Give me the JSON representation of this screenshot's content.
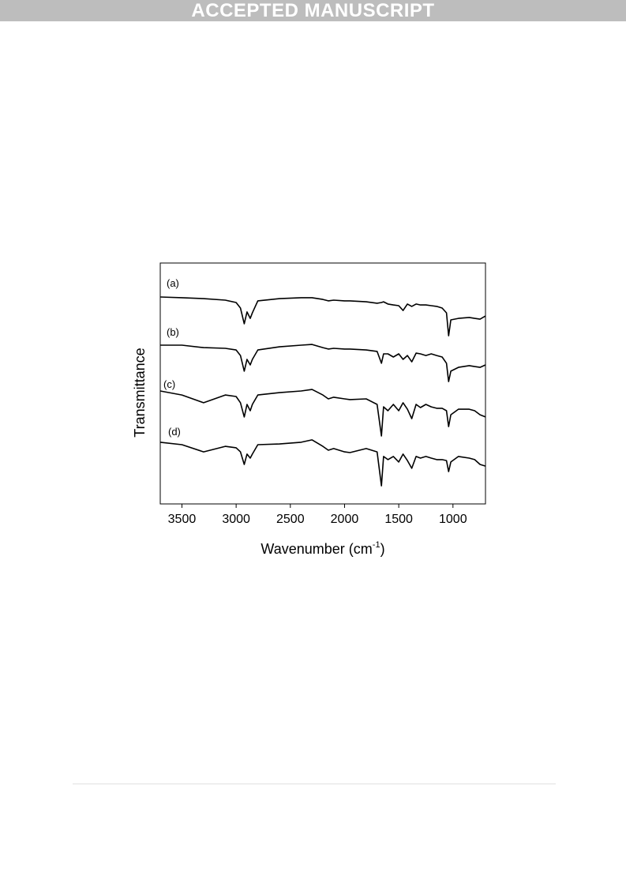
{
  "header": "ACCEPTED MANUSCRIPT",
  "chart_data": {
    "type": "line",
    "ylabel": "Transmittance",
    "xlabel_parts": [
      "Wavenumber (cm",
      "-1",
      ")"
    ],
    "xlim": [
      3700,
      700
    ],
    "xticks": [
      3500,
      3000,
      2500,
      2000,
      1500,
      1000
    ],
    "ylim": [
      0,
      100
    ],
    "grid": false,
    "x": [
      3700,
      3500,
      3300,
      3100,
      3000,
      2960,
      2925,
      2900,
      2870,
      2850,
      2800,
      2600,
      2400,
      2300,
      2200,
      2150,
      2100,
      2000,
      1950,
      1800,
      1700,
      1660,
      1640,
      1600,
      1550,
      1500,
      1460,
      1420,
      1380,
      1340,
      1300,
      1250,
      1200,
      1150,
      1100,
      1060,
      1040,
      1020,
      950,
      850,
      800,
      750,
      700
    ],
    "series": [
      {
        "name": "(a)",
        "color": "#000000",
        "values": [
          85.9,
          85.6,
          85.2,
          84.6,
          83.6,
          81.3,
          74.8,
          79.7,
          77.0,
          79.3,
          84.3,
          85.2,
          85.6,
          85.6,
          84.9,
          84.3,
          84.6,
          84.3,
          84.3,
          83.9,
          83.3,
          83.6,
          83.9,
          83.0,
          82.6,
          82.3,
          80.3,
          83.0,
          82.0,
          83.0,
          82.6,
          82.6,
          82.3,
          82.0,
          81.3,
          79.3,
          69.8,
          76.4,
          77.0,
          77.4,
          77.0,
          76.7,
          78.0
        ]
      },
      {
        "name": "(b)",
        "color": "#000000",
        "values": [
          65.9,
          65.9,
          64.9,
          64.6,
          63.9,
          61.6,
          55.1,
          60.0,
          57.7,
          60.0,
          63.9,
          65.2,
          65.9,
          66.2,
          64.9,
          64.3,
          64.6,
          64.3,
          64.3,
          63.9,
          63.3,
          58.4,
          62.3,
          62.3,
          61.0,
          62.3,
          60.0,
          61.6,
          59.0,
          62.6,
          62.3,
          61.6,
          62.3,
          61.6,
          61.0,
          58.4,
          50.8,
          55.1,
          56.7,
          57.4,
          57.0,
          56.7,
          57.7
        ]
      },
      {
        "name": "(c)",
        "color": "#000000",
        "values": [
          46.9,
          45.2,
          42.0,
          45.2,
          44.6,
          42.0,
          36.1,
          41.3,
          38.7,
          41.3,
          45.2,
          46.2,
          46.9,
          47.5,
          45.2,
          43.6,
          44.3,
          43.6,
          43.3,
          43.6,
          41.3,
          28.2,
          40.3,
          38.7,
          41.3,
          38.7,
          42.0,
          39.3,
          35.4,
          41.3,
          40.0,
          41.3,
          40.3,
          39.7,
          39.7,
          38.7,
          32.1,
          37.0,
          39.3,
          39.3,
          38.7,
          37.0,
          36.1
        ]
      },
      {
        "name": "(d)",
        "color": "#000000",
        "values": [
          25.6,
          24.6,
          21.6,
          23.9,
          23.3,
          21.6,
          16.4,
          20.7,
          19.0,
          20.7,
          24.6,
          24.9,
          25.6,
          26.6,
          23.9,
          22.3,
          23.0,
          21.6,
          21.3,
          23.0,
          21.6,
          7.5,
          19.7,
          18.4,
          19.7,
          17.4,
          20.7,
          18.0,
          14.8,
          19.7,
          19.0,
          19.7,
          19.0,
          18.4,
          18.4,
          18.0,
          13.4,
          17.4,
          19.7,
          19.0,
          18.4,
          16.4,
          15.7
        ]
      }
    ]
  }
}
